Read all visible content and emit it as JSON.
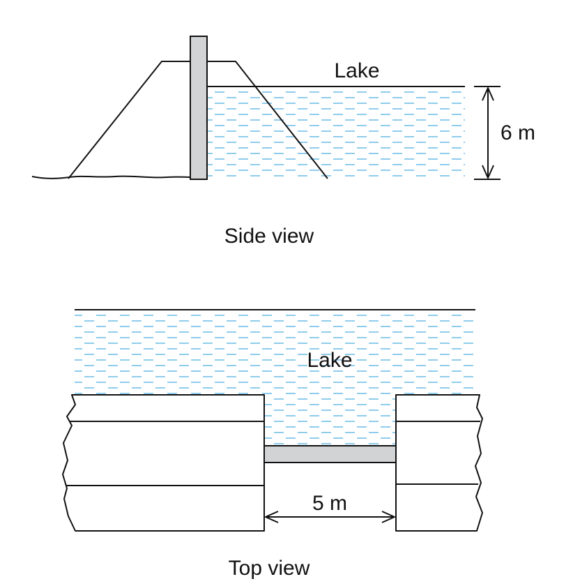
{
  "side_view": {
    "lake_label": "Lake",
    "depth_label": "6 m",
    "caption": "Side view"
  },
  "top_view": {
    "lake_label": "Lake",
    "width_label": "5 m",
    "caption": "Top view"
  },
  "colors": {
    "water_dash": "#5eb6e4",
    "gate_fill": "#d2d3d5",
    "line": "#111111"
  }
}
